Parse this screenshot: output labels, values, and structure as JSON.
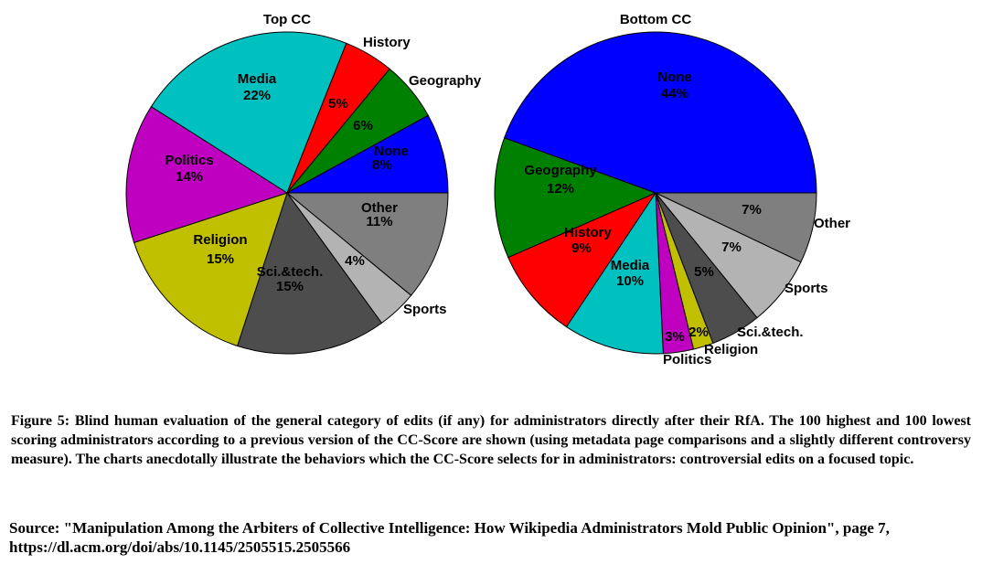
{
  "chart_data": [
    {
      "type": "pie",
      "title": "Top CC",
      "slices": [
        {
          "label": "Other",
          "value": 11,
          "pct_label": "11%",
          "color": "#7f7f7f"
        },
        {
          "label": "Sports",
          "value": 4,
          "pct_label": "4%",
          "color": "#b3b3b3"
        },
        {
          "label": "Sci.&tech.",
          "value": 15,
          "pct_label": "15%",
          "color": "#4d4d4d"
        },
        {
          "label": "Religion",
          "value": 15,
          "pct_label": "15%",
          "color": "#c0c000"
        },
        {
          "label": "Politics",
          "value": 14,
          "pct_label": "14%",
          "color": "#c000c0"
        },
        {
          "label": "Media",
          "value": 22,
          "pct_label": "22%",
          "color": "#00c0c0"
        },
        {
          "label": "History",
          "value": 5,
          "pct_label": "5%",
          "color": "#ff0000"
        },
        {
          "label": "Geography",
          "value": 6,
          "pct_label": "6%",
          "color": "#008000"
        },
        {
          "label": "None",
          "value": 8,
          "pct_label": "8%",
          "color": "#0000ff"
        }
      ]
    },
    {
      "type": "pie",
      "title": "Bottom CC",
      "slices": [
        {
          "label": "Other",
          "value": 7,
          "pct_label": "7%",
          "color": "#7f7f7f"
        },
        {
          "label": "Sports",
          "value": 7,
          "pct_label": "7%",
          "color": "#b3b3b3"
        },
        {
          "label": "Sci.&tech.",
          "value": 5,
          "pct_label": "5%",
          "color": "#4d4d4d"
        },
        {
          "label": "Religion",
          "value": 2,
          "pct_label": "2%",
          "color": "#c0c000"
        },
        {
          "label": "Politics",
          "value": 3,
          "pct_label": "3%",
          "color": "#c000c0"
        },
        {
          "label": "Media",
          "value": 10,
          "pct_label": "10%",
          "color": "#00c0c0"
        },
        {
          "label": "History",
          "value": 9,
          "pct_label": "9%",
          "color": "#ff0000"
        },
        {
          "label": "Geography",
          "value": 12,
          "pct_label": "12%",
          "color": "#008000"
        },
        {
          "label": "None",
          "value": 44,
          "pct_label": "44%",
          "color": "#0000ff"
        }
      ]
    }
  ],
  "caption": "Figure 5: Blind human evaluation of the general category of edits (if any) for administrators directly after their RfA. The 100 highest and 100 lowest scoring administrators according to a previous version of the CC-Score are shown (using metadata page comparisons and a slightly different controversy measure).  The charts anecdotally illustrate the behaviors which the CC-Score selects for in administrators: controversial edits on a focused topic.",
  "source": "Source: \"Manipulation Among the Arbiters of Collective Intelligence: How Wikipedia Administrators Mold Public Opinion\", page 7, https://dl.acm.org/doi/abs/10.1145/2505515.2505566"
}
